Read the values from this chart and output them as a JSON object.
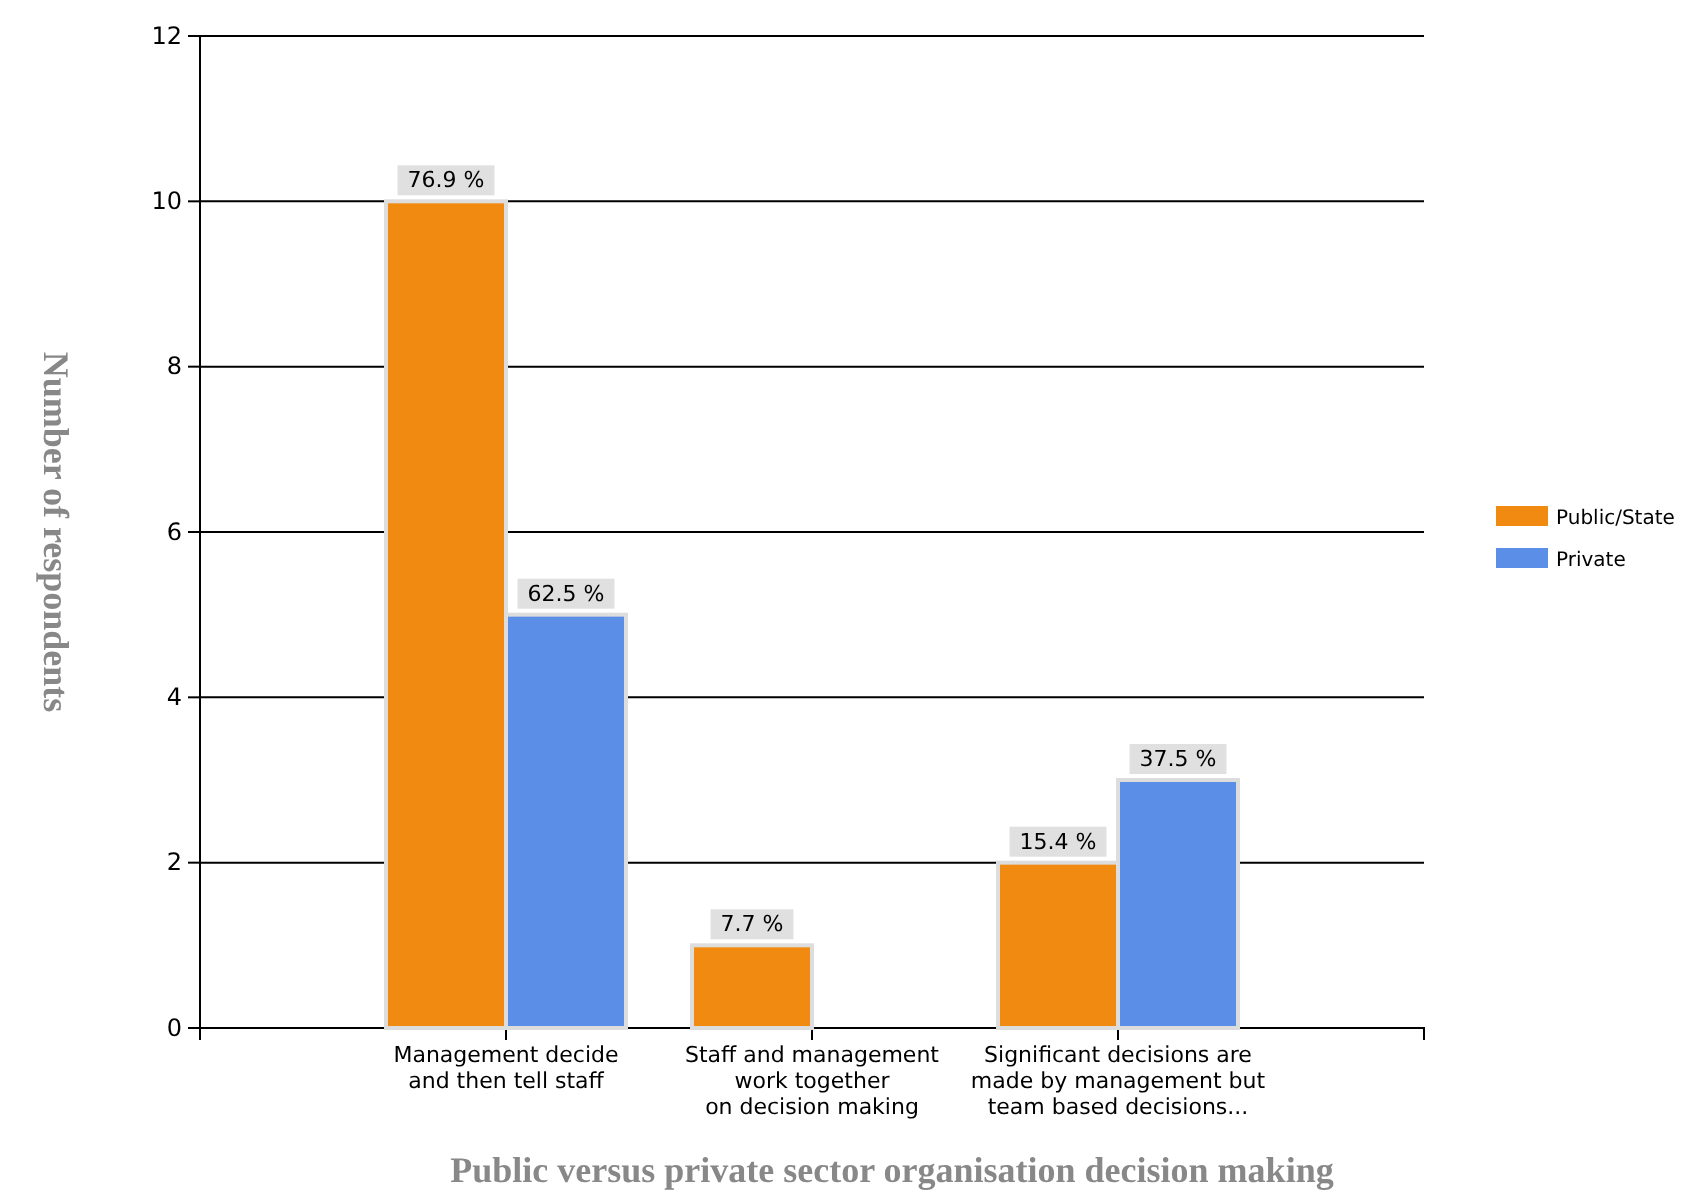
{
  "chart_data": {
    "type": "bar",
    "xlabel": "Public versus private sector organisation decision making",
    "ylabel": "Number of respondents",
    "categories": [
      "Management decide\nand then tell staff",
      "Staff and management\nwork together\non decision making",
      "Significant decisions are\nmade by management but\nteam based decisions..."
    ],
    "series": [
      {
        "name": "Public/State",
        "color": "#f08a10",
        "values": [
          10,
          1,
          2
        ]
      },
      {
        "name": "Private",
        "color": "#5b8ee6",
        "values": [
          5,
          0,
          3
        ]
      }
    ],
    "annotations": [
      {
        "text": "76.9 %",
        "x": "Management decide\nand then tell staff",
        "y": 10
      },
      {
        "text": "7.7 %",
        "x": "Staff and management\nwork together\non decision making",
        "y": 1
      },
      {
        "text": "15.4 %",
        "x": "Significant decisions are\nmade by management but\nteam based decisions...",
        "y": 2
      },
      {
        "text": "62.5 %",
        "x": "Management decide\nand then tell staff",
        "y": 5
      },
      {
        "text": "37.5 %",
        "x": "Significant decisions are\nmade by management but\nteam based decisions...",
        "y": 3
      }
    ],
    "ylim": [
      0,
      12
    ],
    "yticks": [
      0,
      2,
      4,
      6,
      8,
      10,
      12
    ],
    "grid": "y",
    "legend": "right"
  }
}
